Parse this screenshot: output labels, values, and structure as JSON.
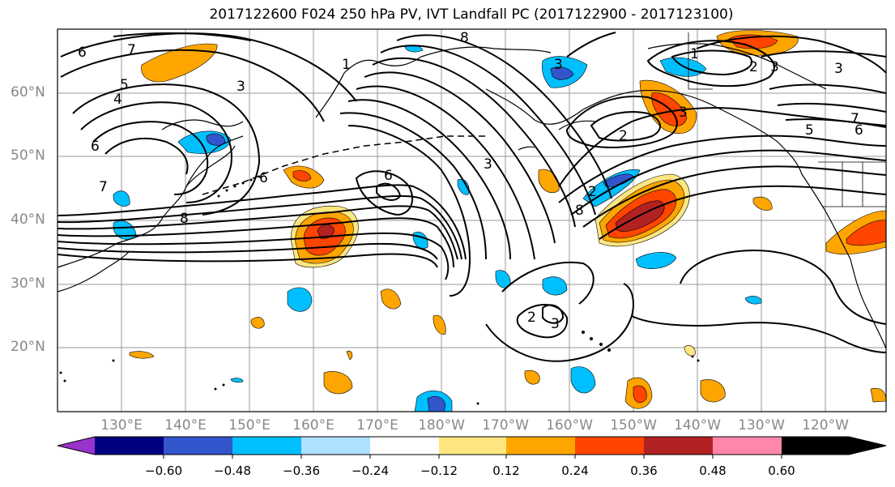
{
  "title": "2017122600 F024 250 hPa PV, IVT Landfall PC (2017122900 - 2017123100)",
  "lat_labels": [
    "60°N",
    "50°N",
    "40°N",
    "30°N",
    "20°N"
  ],
  "lon_labels": [
    "130°E",
    "140°E",
    "150°E",
    "160°E",
    "170°E",
    "180°W",
    "170°W",
    "160°W",
    "150°W",
    "140°W",
    "130°W",
    "120°W"
  ],
  "contour_labels": [
    "6",
    "7",
    "5",
    "4",
    "3",
    "6",
    "7",
    "8",
    "1",
    "6",
    "6",
    "3",
    "8",
    "3",
    "2",
    "3",
    "8",
    "1",
    "2",
    "3",
    "2",
    "3",
    "7",
    "5",
    "6",
    "2",
    "3"
  ],
  "colorbar": {
    "ticks": [
      "−0.60",
      "−0.48",
      "−0.36",
      "−0.24",
      "−0.12",
      "0.12",
      "0.24",
      "0.36",
      "0.48",
      "0.60"
    ],
    "colors": [
      "#9933cc",
      "#000080",
      "#3355cc",
      "#00bfff",
      "#b0e0ff",
      "#ffffff",
      "#ffe680",
      "#ffa500",
      "#ff4500",
      "#b22222",
      "#ff88aa"
    ]
  }
}
